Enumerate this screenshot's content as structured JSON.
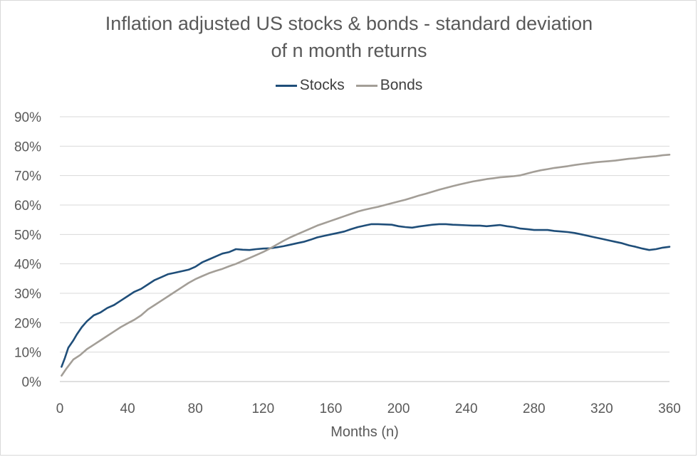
{
  "chart_data": {
    "type": "line",
    "title": "Inflation adjusted US stocks & bonds - standard deviation of n month returns",
    "title_lines": [
      "Inflation adjusted US stocks & bonds - standard deviation",
      "of n month returns"
    ],
    "xlabel": "Months (n)",
    "ylabel": "",
    "xlim": [
      0,
      360
    ],
    "ylim": [
      0,
      0.9
    ],
    "x_ticks": [
      0,
      40,
      80,
      120,
      160,
      200,
      240,
      280,
      320,
      360
    ],
    "y_ticks": [
      "0%",
      "10%",
      "20%",
      "30%",
      "40%",
      "50%",
      "60%",
      "70%",
      "80%",
      "90%"
    ],
    "grid": "horizontal",
    "legend_position": "top",
    "series": [
      {
        "name": "Stocks",
        "color": "#1f4e79",
        "points": [
          [
            1,
            0.05
          ],
          [
            3,
            0.08
          ],
          [
            5,
            0.115
          ],
          [
            8,
            0.14
          ],
          [
            10,
            0.16
          ],
          [
            13,
            0.185
          ],
          [
            16,
            0.205
          ],
          [
            20,
            0.225
          ],
          [
            24,
            0.235
          ],
          [
            28,
            0.25
          ],
          [
            32,
            0.26
          ],
          [
            36,
            0.275
          ],
          [
            40,
            0.29
          ],
          [
            44,
            0.305
          ],
          [
            48,
            0.315
          ],
          [
            52,
            0.33
          ],
          [
            56,
            0.345
          ],
          [
            60,
            0.355
          ],
          [
            64,
            0.365
          ],
          [
            68,
            0.37
          ],
          [
            72,
            0.375
          ],
          [
            76,
            0.38
          ],
          [
            80,
            0.39
          ],
          [
            84,
            0.405
          ],
          [
            88,
            0.415
          ],
          [
            92,
            0.425
          ],
          [
            96,
            0.435
          ],
          [
            100,
            0.44
          ],
          [
            104,
            0.45
          ],
          [
            108,
            0.448
          ],
          [
            112,
            0.447
          ],
          [
            116,
            0.45
          ],
          [
            120,
            0.452
          ],
          [
            124,
            0.453
          ],
          [
            128,
            0.456
          ],
          [
            132,
            0.46
          ],
          [
            136,
            0.465
          ],
          [
            140,
            0.47
          ],
          [
            144,
            0.475
          ],
          [
            148,
            0.482
          ],
          [
            152,
            0.49
          ],
          [
            156,
            0.495
          ],
          [
            160,
            0.5
          ],
          [
            164,
            0.505
          ],
          [
            168,
            0.51
          ],
          [
            172,
            0.518
          ],
          [
            176,
            0.525
          ],
          [
            180,
            0.53
          ],
          [
            184,
            0.535
          ],
          [
            188,
            0.535
          ],
          [
            192,
            0.534
          ],
          [
            196,
            0.533
          ],
          [
            200,
            0.528
          ],
          [
            204,
            0.525
          ],
          [
            208,
            0.523
          ],
          [
            212,
            0.527
          ],
          [
            216,
            0.53
          ],
          [
            220,
            0.533
          ],
          [
            224,
            0.535
          ],
          [
            228,
            0.535
          ],
          [
            232,
            0.533
          ],
          [
            236,
            0.532
          ],
          [
            240,
            0.531
          ],
          [
            244,
            0.53
          ],
          [
            248,
            0.53
          ],
          [
            252,
            0.528
          ],
          [
            256,
            0.53
          ],
          [
            260,
            0.532
          ],
          [
            264,
            0.528
          ],
          [
            268,
            0.525
          ],
          [
            272,
            0.52
          ],
          [
            276,
            0.518
          ],
          [
            280,
            0.515
          ],
          [
            284,
            0.515
          ],
          [
            288,
            0.515
          ],
          [
            292,
            0.512
          ],
          [
            296,
            0.51
          ],
          [
            300,
            0.508
          ],
          [
            304,
            0.505
          ],
          [
            308,
            0.5
          ],
          [
            312,
            0.495
          ],
          [
            316,
            0.49
          ],
          [
            320,
            0.485
          ],
          [
            324,
            0.48
          ],
          [
            328,
            0.475
          ],
          [
            332,
            0.47
          ],
          [
            336,
            0.463
          ],
          [
            340,
            0.458
          ],
          [
            344,
            0.452
          ],
          [
            348,
            0.447
          ],
          [
            352,
            0.45
          ],
          [
            356,
            0.455
          ],
          [
            360,
            0.458
          ]
        ]
      },
      {
        "name": "Bonds",
        "color": "#a39e97",
        "points": [
          [
            1,
            0.02
          ],
          [
            4,
            0.045
          ],
          [
            8,
            0.075
          ],
          [
            12,
            0.09
          ],
          [
            16,
            0.11
          ],
          [
            20,
            0.125
          ],
          [
            24,
            0.14
          ],
          [
            28,
            0.155
          ],
          [
            32,
            0.17
          ],
          [
            36,
            0.185
          ],
          [
            40,
            0.198
          ],
          [
            44,
            0.21
          ],
          [
            48,
            0.225
          ],
          [
            52,
            0.245
          ],
          [
            56,
            0.26
          ],
          [
            60,
            0.275
          ],
          [
            64,
            0.29
          ],
          [
            68,
            0.305
          ],
          [
            72,
            0.32
          ],
          [
            76,
            0.335
          ],
          [
            80,
            0.348
          ],
          [
            84,
            0.358
          ],
          [
            88,
            0.368
          ],
          [
            92,
            0.376
          ],
          [
            96,
            0.383
          ],
          [
            100,
            0.392
          ],
          [
            104,
            0.4
          ],
          [
            108,
            0.41
          ],
          [
            112,
            0.42
          ],
          [
            116,
            0.43
          ],
          [
            120,
            0.44
          ],
          [
            124,
            0.452
          ],
          [
            128,
            0.465
          ],
          [
            132,
            0.478
          ],
          [
            136,
            0.49
          ],
          [
            140,
            0.5
          ],
          [
            144,
            0.51
          ],
          [
            148,
            0.52
          ],
          [
            152,
            0.53
          ],
          [
            156,
            0.538
          ],
          [
            160,
            0.546
          ],
          [
            164,
            0.554
          ],
          [
            168,
            0.562
          ],
          [
            172,
            0.57
          ],
          [
            176,
            0.578
          ],
          [
            180,
            0.584
          ],
          [
            184,
            0.589
          ],
          [
            188,
            0.594
          ],
          [
            192,
            0.6
          ],
          [
            196,
            0.606
          ],
          [
            200,
            0.612
          ],
          [
            204,
            0.618
          ],
          [
            208,
            0.625
          ],
          [
            212,
            0.632
          ],
          [
            216,
            0.638
          ],
          [
            220,
            0.645
          ],
          [
            224,
            0.652
          ],
          [
            228,
            0.658
          ],
          [
            232,
            0.664
          ],
          [
            236,
            0.67
          ],
          [
            240,
            0.675
          ],
          [
            244,
            0.68
          ],
          [
            248,
            0.684
          ],
          [
            252,
            0.688
          ],
          [
            256,
            0.691
          ],
          [
            260,
            0.694
          ],
          [
            264,
            0.696
          ],
          [
            268,
            0.698
          ],
          [
            272,
            0.701
          ],
          [
            276,
            0.707
          ],
          [
            280,
            0.713
          ],
          [
            284,
            0.718
          ],
          [
            288,
            0.722
          ],
          [
            292,
            0.726
          ],
          [
            296,
            0.729
          ],
          [
            300,
            0.732
          ],
          [
            304,
            0.736
          ],
          [
            308,
            0.739
          ],
          [
            312,
            0.742
          ],
          [
            316,
            0.745
          ],
          [
            320,
            0.747
          ],
          [
            324,
            0.749
          ],
          [
            328,
            0.751
          ],
          [
            332,
            0.754
          ],
          [
            336,
            0.757
          ],
          [
            340,
            0.759
          ],
          [
            344,
            0.762
          ],
          [
            348,
            0.764
          ],
          [
            352,
            0.766
          ],
          [
            356,
            0.769
          ],
          [
            360,
            0.771
          ]
        ]
      }
    ]
  }
}
